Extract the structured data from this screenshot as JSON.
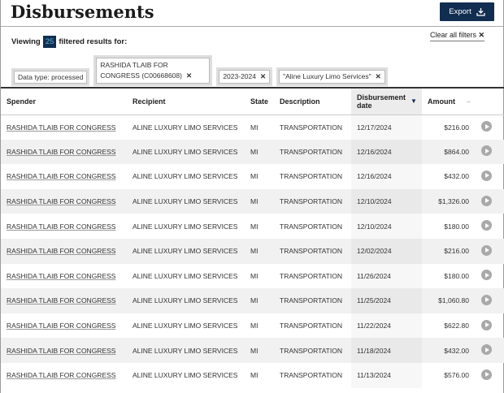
{
  "title": "Disbursements",
  "export_label": "Export",
  "viewing": {
    "prefix": "Viewing",
    "count": "25",
    "suffix": "filtered results for:"
  },
  "clear_all": "Clear all filters",
  "filters": [
    {
      "label": "Data type: processed",
      "removable": false
    },
    {
      "label": "RASHIDA TLAIB FOR CONGRESS (C00668608)",
      "removable": true
    },
    {
      "label": "2023-2024",
      "removable": true
    },
    {
      "label": "\"Aline Luxury Limo Services\"",
      "removable": true
    }
  ],
  "columns": [
    "Spender",
    "Recipient",
    "State",
    "Description",
    "Disbursement date",
    "Amount"
  ],
  "sorted_column": "Disbursement date",
  "rows": [
    [
      "RASHIDA TLAIB FOR CONGRESS",
      "ALINE LUXURY LIMO SERVICES",
      "MI",
      "TRANSPORTATION",
      "12/17/2024",
      "$216.00"
    ],
    [
      "RASHIDA TLAIB FOR CONGRESS",
      "ALINE LUXURY LIMO SERVICES",
      "MI",
      "TRANSPORTATION",
      "12/16/2024",
      "$864.00"
    ],
    [
      "RASHIDA TLAIB FOR CONGRESS",
      "ALINE LUXURY LIMO SERVICES",
      "MI",
      "TRANSPORTATION",
      "12/16/2024",
      "$432.00"
    ],
    [
      "RASHIDA TLAIB FOR CONGRESS",
      "ALINE LUXURY LIMO SERVICES",
      "MI",
      "TRANSPORTATION",
      "12/10/2024",
      "$1,326.00"
    ],
    [
      "RASHIDA TLAIB FOR CONGRESS",
      "ALINE LUXURY LIMO SERVICES",
      "MI",
      "TRANSPORTATION",
      "12/10/2024",
      "$180.00"
    ],
    [
      "RASHIDA TLAIB FOR CONGRESS",
      "ALINE LUXURY LIMO SERVICES",
      "MI",
      "TRANSPORTATION",
      "12/02/2024",
      "$216.00"
    ],
    [
      "RASHIDA TLAIB FOR CONGRESS",
      "ALINE LUXURY LIMO SERVICES",
      "MI",
      "TRANSPORTATION",
      "11/26/2024",
      "$180.00"
    ],
    [
      "RASHIDA TLAIB FOR CONGRESS",
      "ALINE LUXURY LIMO SERVICES",
      "MI",
      "TRANSPORTATION",
      "11/25/2024",
      "$1,060.80"
    ],
    [
      "RASHIDA TLAIB FOR CONGRESS",
      "ALINE LUXURY LIMO SERVICES",
      "MI",
      "TRANSPORTATION",
      "11/22/2024",
      "$622.80"
    ],
    [
      "RASHIDA TLAIB FOR CONGRESS",
      "ALINE LUXURY LIMO SERVICES",
      "MI",
      "TRANSPORTATION",
      "11/18/2024",
      "$432.00"
    ],
    [
      "RASHIDA TLAIB FOR CONGRESS",
      "ALINE LUXURY LIMO SERVICES",
      "MI",
      "TRANSPORTATION",
      "11/13/2024",
      "$576.00"
    ]
  ]
}
